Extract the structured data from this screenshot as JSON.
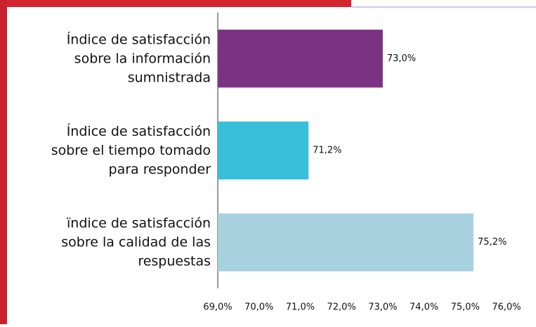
{
  "chart_data": {
    "type": "barh",
    "categories": [
      "Índice de satisfacción\nsobre la información\nsumnistrada",
      "Índice de satisfacción\nsobre el tiempo tomado\npara responder",
      "ïndice de satisfacción\nsobre la calidad de las\nrespuestas"
    ],
    "values": [
      73.0,
      71.2,
      75.2
    ],
    "value_labels": [
      "73,0%",
      "71,2%",
      "75,2%"
    ],
    "colors": [
      "#7b3283",
      "#38c0da",
      "#a8d1df"
    ],
    "xlim": [
      69,
      76
    ],
    "xticks": [
      {
        "value": 69,
        "label": "69,0%"
      },
      {
        "value": 70,
        "label": "70,0%"
      },
      {
        "value": 71,
        "label": "71,0%"
      },
      {
        "value": 72,
        "label": "72,0%"
      },
      {
        "value": 73,
        "label": "73,0%"
      },
      {
        "value": 74,
        "label": "74,0%"
      },
      {
        "value": 75,
        "label": "75,0%"
      },
      {
        "value": 76,
        "label": "76,0%"
      }
    ]
  }
}
